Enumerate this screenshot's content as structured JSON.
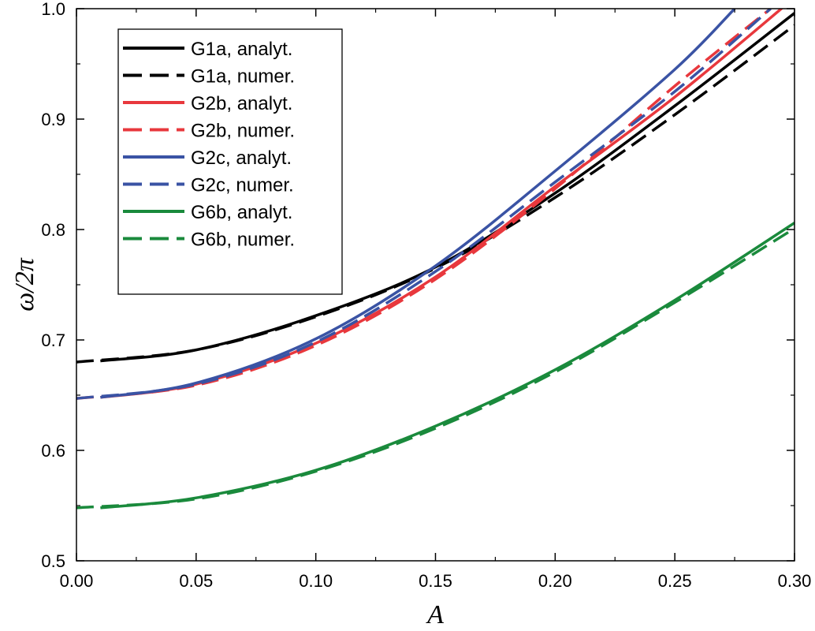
{
  "chart_data": {
    "type": "line",
    "title": "",
    "xlabel": "A",
    "ylabel": "ω/2π",
    "xlim": [
      0.0,
      0.3
    ],
    "ylim": [
      0.5,
      1.0
    ],
    "xticks": [
      "0.00",
      "0.05",
      "0.10",
      "0.15",
      "0.20",
      "0.25",
      "0.30"
    ],
    "yticks": [
      "0.5",
      "0.6",
      "0.7",
      "0.8",
      "0.9",
      "1.0"
    ],
    "grid": false,
    "legend_position": "top-left",
    "series": [
      {
        "name": "G1a, analyt.",
        "color": "#000000",
        "style": "solid",
        "x": [
          0.01,
          0.05,
          0.1,
          0.15,
          0.2,
          0.25,
          0.3
        ],
        "y": [
          0.681,
          0.691,
          0.722,
          0.766,
          0.833,
          0.912,
          0.996
        ]
      },
      {
        "name": "G1a, numer.",
        "color": "#000000",
        "style": "dashed",
        "x": [
          0.0,
          0.05,
          0.1,
          0.15,
          0.2,
          0.25,
          0.3
        ],
        "y": [
          0.68,
          0.691,
          0.721,
          0.765,
          0.829,
          0.904,
          0.985
        ]
      },
      {
        "name": "G2b, analyt.",
        "color": "#e8383d",
        "style": "solid",
        "x": [
          0.01,
          0.05,
          0.1,
          0.15,
          0.2,
          0.25,
          0.3
        ],
        "y": [
          0.648,
          0.66,
          0.697,
          0.757,
          0.839,
          0.92,
          1.01
        ]
      },
      {
        "name": "G2b, numer.",
        "color": "#e8383d",
        "style": "dashed",
        "x": [
          0.0,
          0.05,
          0.1,
          0.15,
          0.2,
          0.25,
          0.29
        ],
        "y": [
          0.647,
          0.659,
          0.695,
          0.755,
          0.837,
          0.93,
          1.0
        ]
      },
      {
        "name": "G2c, analyt.",
        "color": "#3a53a4",
        "style": "solid",
        "x": [
          0.01,
          0.05,
          0.1,
          0.15,
          0.2,
          0.25,
          0.275
        ],
        "y": [
          0.648,
          0.661,
          0.701,
          0.767,
          0.853,
          0.945,
          1.0
        ]
      },
      {
        "name": "G2c, numer.",
        "color": "#3a53a4",
        "style": "dashed",
        "x": [
          0.0,
          0.05,
          0.1,
          0.15,
          0.2,
          0.25,
          0.29
        ],
        "y": [
          0.647,
          0.66,
          0.698,
          0.762,
          0.843,
          0.925,
          1.0
        ]
      },
      {
        "name": "G6b, analyt.",
        "color": "#1a8a3c",
        "style": "solid",
        "x": [
          0.01,
          0.05,
          0.1,
          0.15,
          0.2,
          0.25,
          0.3
        ],
        "y": [
          0.548,
          0.557,
          0.582,
          0.622,
          0.673,
          0.736,
          0.806
        ]
      },
      {
        "name": "G6b, numer.",
        "color": "#1a8a3c",
        "style": "dashed",
        "x": [
          0.0,
          0.05,
          0.1,
          0.15,
          0.2,
          0.25,
          0.3
        ],
        "y": [
          0.548,
          0.556,
          0.581,
          0.62,
          0.671,
          0.734,
          0.801
        ]
      }
    ]
  }
}
